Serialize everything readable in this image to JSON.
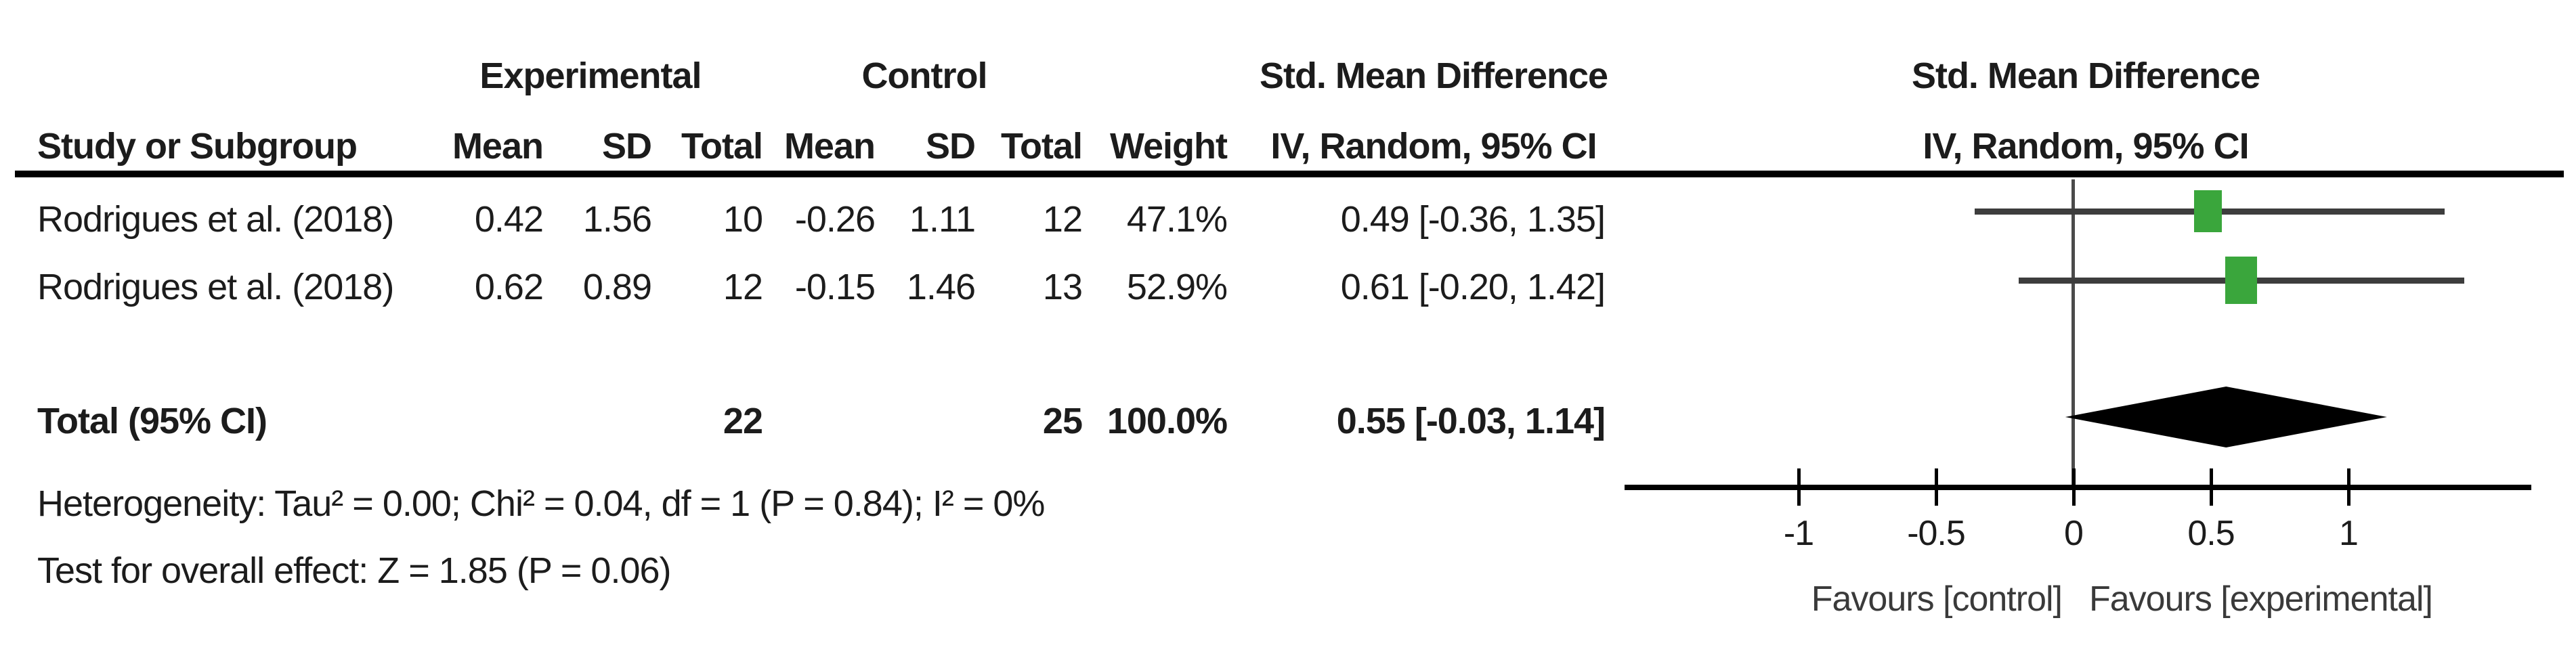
{
  "table": {
    "group_headers": [
      {
        "label": "Experimental"
      },
      {
        "label": "Control"
      }
    ],
    "effect_header_left": "Std. Mean Difference",
    "columns": {
      "study": "Study or Subgroup",
      "exp_mean": "Mean",
      "exp_sd": "SD",
      "exp_total": "Total",
      "ctrl_mean": "Mean",
      "ctrl_sd": "SD",
      "ctrl_total": "Total",
      "weight": "Weight",
      "ci": "IV, Random, 95% CI"
    },
    "plot_header_line1": "Std. Mean Difference",
    "plot_header_line2": "IV, Random, 95% CI",
    "rows": [
      {
        "study": "Rodrigues et al. (2018)",
        "exp_mean": "0.42",
        "exp_sd": "1.56",
        "exp_total": "10",
        "ctrl_mean": "-0.26",
        "ctrl_sd": "1.11",
        "ctrl_total": "12",
        "weight": "47.1%",
        "ci_text": "0.49 [-0.36, 1.35]"
      },
      {
        "study": "Rodrigues et al. (2018)",
        "exp_mean": "0.62",
        "exp_sd": "0.89",
        "exp_total": "12",
        "ctrl_mean": "-0.15",
        "ctrl_sd": "1.46",
        "ctrl_total": "13",
        "weight": "52.9%",
        "ci_text": "0.61 [-0.20, 1.42]"
      }
    ],
    "total": {
      "label": "Total (95% CI)",
      "exp_total": "22",
      "ctrl_total": "25",
      "weight": "100.0%",
      "ci_text": "0.55 [-0.03, 1.14]"
    },
    "heterogeneity": "Heterogeneity: Tau² = 0.00; Chi² = 0.04, df = 1 (P = 0.84); I² = 0%",
    "overall_effect": "Test for overall effect: Z = 1.85 (P = 0.06)"
  },
  "chart_data": {
    "type": "forest",
    "effect_measure": "Std. Mean Difference",
    "model": "IV, Random, 95% CI",
    "studies": [
      {
        "name": "Rodrigues et al. (2018)",
        "est": 0.49,
        "ci": [
          -0.36,
          1.35
        ],
        "weight": 47.1
      },
      {
        "name": "Rodrigues et al. (2018)",
        "est": 0.61,
        "ci": [
          -0.2,
          1.42
        ],
        "weight": 52.9
      }
    ],
    "total": {
      "est": 0.55,
      "ci": [
        -0.03,
        1.14
      ]
    },
    "axis": {
      "ticks": [
        -1,
        -0.5,
        0,
        0.5,
        1
      ],
      "tick_labels": [
        "-1",
        "-0.5",
        "0",
        "0.5",
        "1"
      ],
      "range": [
        -1.63,
        1.67
      ]
    },
    "favours_left": "Favours [control]",
    "favours_right": "Favours [experimental]",
    "marker_color": "#3aa63c",
    "diamond_color": "#000000"
  }
}
